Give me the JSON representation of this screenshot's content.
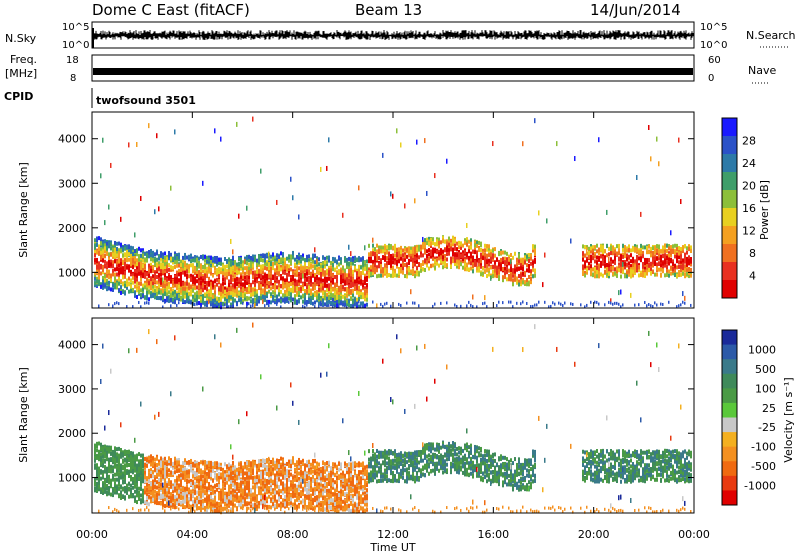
{
  "header": {
    "title": "Dome C East (fitACF)",
    "beam": "Beam 13",
    "date": "14/Jun/2014"
  },
  "panels": {
    "nsky": {
      "left_label": "N.Sky",
      "right_label": "N.Search",
      "left_ticks": [
        "10^5",
        "10^0"
      ],
      "right_ticks": [
        "10^5",
        "10^0"
      ]
    },
    "freq": {
      "left_label_1": "Freq.",
      "left_label_2": "[MHz]",
      "right_label": "Nave",
      "left_ticks": [
        "18",
        "8"
      ],
      "right_ticks": [
        "60",
        "0"
      ]
    },
    "cpid": {
      "label": "CPID",
      "value": "twofsound 3501"
    }
  },
  "chart_data": [
    {
      "type": "heatmap",
      "name": "power",
      "ylabel": "Slant Range [km]",
      "ylim": [
        200,
        4600
      ],
      "yticks": [
        1000,
        2000,
        3000,
        4000
      ],
      "colorbar": {
        "label": "Power [dB]",
        "ticks": [
          4,
          8,
          12,
          16,
          20,
          24,
          28
        ],
        "colors": [
          "#1a1aff",
          "#2b52c8",
          "#2d7aa8",
          "#3f9e6a",
          "#8cbf3a",
          "#e8d020",
          "#f4a020",
          "#f07020",
          "#e83020",
          "#e00000"
        ]
      }
    },
    {
      "type": "heatmap",
      "name": "velocity",
      "ylabel": "Slant Range [km]",
      "ylim": [
        200,
        4600
      ],
      "yticks": [
        1000,
        2000,
        3000,
        4000
      ],
      "colorbar": {
        "label": "Velocity [m s⁻¹]",
        "ticks": [
          1000,
          500,
          100,
          25,
          -25,
          -100,
          -500,
          -1000
        ],
        "colors": [
          "#1a2a9a",
          "#2c5aa8",
          "#3a7a8a",
          "#3f8a5a",
          "#4a9a45",
          "#5ac83a",
          "#c8c8c8",
          "#f4b020",
          "#f49020",
          "#f06a10",
          "#e83a10",
          "#e00000"
        ]
      }
    }
  ],
  "x_axis": {
    "label": "Time UT",
    "ticks": [
      "00:00",
      "04:00",
      "08:00",
      "12:00",
      "16:00",
      "20:00",
      "00:00"
    ]
  }
}
